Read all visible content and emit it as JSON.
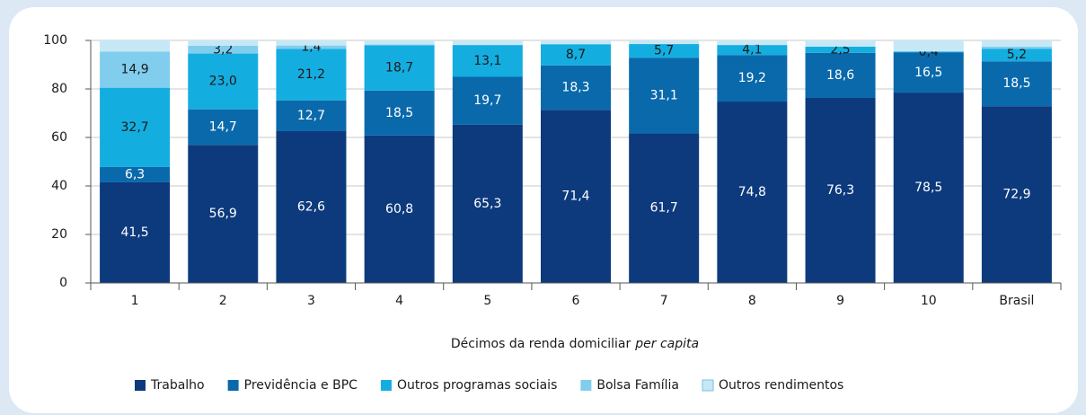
{
  "chart_data": {
    "type": "bar",
    "stacked": true,
    "categories": [
      "1",
      "2",
      "3",
      "4",
      "5",
      "6",
      "7",
      "8",
      "9",
      "10",
      "Brasil"
    ],
    "x_label": [
      "Décimos da renda domiciliar",
      "per capita"
    ],
    "ylim": [
      0,
      100
    ],
    "yticks": [
      0,
      20,
      40,
      60,
      80,
      100
    ],
    "grid": true,
    "legend": "bottom",
    "series": [
      {
        "name": "Trabalho",
        "color": "#0d3a7d",
        "values": [
          41.5,
          56.9,
          62.6,
          60.8,
          65.3,
          71.4,
          61.7,
          74.8,
          76.3,
          78.5,
          72.9
        ],
        "value_labels": [
          "41,5",
          "56,9",
          "62,6",
          "60,8",
          "65,3",
          "71,4",
          "61,7",
          "74,8",
          "76,3",
          "78,5",
          "72,9"
        ]
      },
      {
        "name": "Previdência e BPC",
        "color": "#0a69ab",
        "values": [
          6.3,
          14.7,
          12.7,
          18.5,
          19.7,
          18.3,
          31.1,
          19.2,
          18.6,
          16.5,
          18.5
        ],
        "value_labels": [
          "6,3",
          "14,7",
          "12,7",
          "18,5",
          "19,7",
          "18,3",
          "31,1",
          "19,2",
          "18,6",
          "16,5",
          "18,5"
        ]
      },
      {
        "name": "Outros programas sociais",
        "color": "#14ade0",
        "values": [
          32.7,
          23.0,
          21.2,
          18.7,
          13.1,
          8.7,
          5.7,
          4.1,
          2.5,
          0.4,
          5.2
        ],
        "value_labels": [
          "32,7",
          "23,0",
          "21,2",
          "18,7",
          "13,1",
          "8,7",
          "5,7",
          "4,1",
          "2,5",
          "0,4",
          "5,2"
        ]
      },
      {
        "name": "Bolsa Família",
        "color": "#80cdee",
        "values": [
          14.9,
          3.2,
          1.4,
          0.3,
          0.1,
          0.1,
          0.1,
          0.1,
          0.1,
          0.1,
          0.8
        ],
        "value_labels": [
          "14,9",
          "3,2",
          "1,4",
          null,
          null,
          null,
          null,
          null,
          null,
          null,
          null
        ]
      },
      {
        "name": "Outros rendimentos",
        "color": "#c6e8f6",
        "values": [
          4.6,
          2.2,
          2.1,
          1.7,
          1.8,
          1.5,
          1.4,
          1.8,
          2.5,
          4.5,
          2.6
        ]
      }
    ]
  }
}
